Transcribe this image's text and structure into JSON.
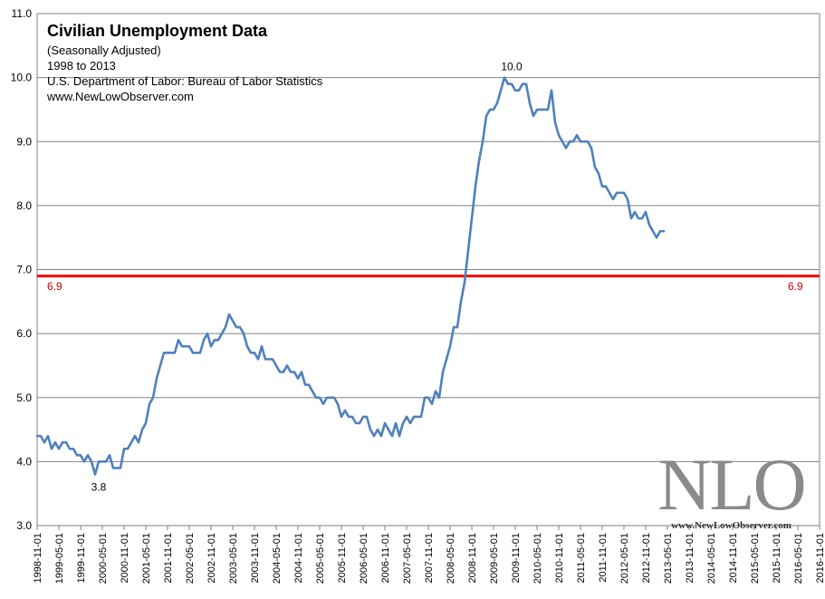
{
  "chart_data": {
    "type": "line",
    "title": "Civilian Unemployment Data",
    "subtitle_lines": [
      "(Seasonally Adjusted)",
      "1998  to 2013",
      "U.S. Department of Labor: Bureau of Labor Statistics",
      "www.NewLowObserver.com"
    ],
    "xlabel": "",
    "ylabel": "",
    "ylim": [
      3.0,
      11.0
    ],
    "yticks": [
      "3.0",
      "4.0",
      "5.0",
      "6.0",
      "7.0",
      "8.0",
      "9.0",
      "10.0",
      "11.0"
    ],
    "xlim": [
      "1998-11-01",
      "2016-11-01"
    ],
    "xtick_labels": [
      "1998-11-01",
      "1999-05-01",
      "1999-11-01",
      "2000-05-01",
      "2000-11-01",
      "2001-05-01",
      "2001-11-01",
      "2002-05-01",
      "2002-11-01",
      "2003-05-01",
      "2003-11-01",
      "2004-05-01",
      "2004-11-01",
      "2005-05-01",
      "2005-11-01",
      "2006-05-01",
      "2006-11-01",
      "2007-05-01",
      "2007-11-01",
      "2008-05-01",
      "2008-11-01",
      "2009-05-01",
      "2009-11-01",
      "2010-05-01",
      "2010-11-01",
      "2011-05-01",
      "2011-11-01",
      "2012-05-01",
      "2012-11-01",
      "2013-05-01",
      "2013-11-01",
      "2014-05-01",
      "2014-11-01",
      "2015-05-01",
      "2015-11-01",
      "2016-05-01",
      "2016-11-01"
    ],
    "grid": true,
    "series": [
      {
        "color": "#4f81bd",
        "start": "1998-11",
        "values": [
          4.4,
          4.4,
          4.3,
          4.4,
          4.2,
          4.3,
          4.2,
          4.3,
          4.3,
          4.2,
          4.2,
          4.1,
          4.1,
          4.0,
          4.1,
          4.0,
          3.8,
          4.0,
          4.0,
          4.0,
          4.1,
          3.9,
          3.9,
          3.9,
          4.2,
          4.2,
          4.3,
          4.4,
          4.3,
          4.5,
          4.6,
          4.9,
          5.0,
          5.3,
          5.5,
          5.7,
          5.7,
          5.7,
          5.7,
          5.9,
          5.8,
          5.8,
          5.8,
          5.7,
          5.7,
          5.7,
          5.9,
          6.0,
          5.8,
          5.9,
          5.9,
          6.0,
          6.1,
          6.3,
          6.2,
          6.1,
          6.1,
          6.0,
          5.8,
          5.7,
          5.7,
          5.6,
          5.8,
          5.6,
          5.6,
          5.6,
          5.5,
          5.4,
          5.4,
          5.5,
          5.4,
          5.4,
          5.3,
          5.4,
          5.2,
          5.2,
          5.1,
          5.0,
          5.0,
          4.9,
          5.0,
          5.0,
          5.0,
          4.9,
          4.7,
          4.8,
          4.7,
          4.7,
          4.6,
          4.6,
          4.7,
          4.7,
          4.5,
          4.4,
          4.5,
          4.4,
          4.6,
          4.5,
          4.4,
          4.6,
          4.4,
          4.6,
          4.7,
          4.6,
          4.7,
          4.7,
          4.7,
          5.0,
          5.0,
          4.9,
          5.1,
          5.0,
          5.4,
          5.6,
          5.8,
          6.1,
          6.1,
          6.5,
          6.8,
          7.3,
          7.8,
          8.3,
          8.7,
          9.0,
          9.4,
          9.5,
          9.5,
          9.6,
          9.8,
          10.0,
          9.9,
          9.9,
          9.8,
          9.8,
          9.9,
          9.9,
          9.6,
          9.4,
          9.5,
          9.5,
          9.5,
          9.5,
          9.8,
          9.3,
          9.1,
          9.0,
          8.9,
          9.0,
          9.0,
          9.1,
          9.0,
          9.0,
          9.0,
          8.9,
          8.6,
          8.5,
          8.3,
          8.3,
          8.2,
          8.1,
          8.2,
          8.2,
          8.2,
          8.1,
          7.8,
          7.9,
          7.8,
          7.8,
          7.9,
          7.7,
          7.6,
          7.5,
          7.6,
          7.6
        ]
      }
    ],
    "reference_line": {
      "value": 6.9,
      "color": "#ff0000",
      "label_left": "6.9",
      "label_right": "6.9"
    },
    "annotations": [
      {
        "text": "10.0",
        "x": "2009-10",
        "y": 10.0
      },
      {
        "text": "3.8",
        "x": "2000-04",
        "y": 3.8
      }
    ],
    "watermark": {
      "big": "NLO",
      "small": "www.NewLowObserver.com"
    }
  }
}
